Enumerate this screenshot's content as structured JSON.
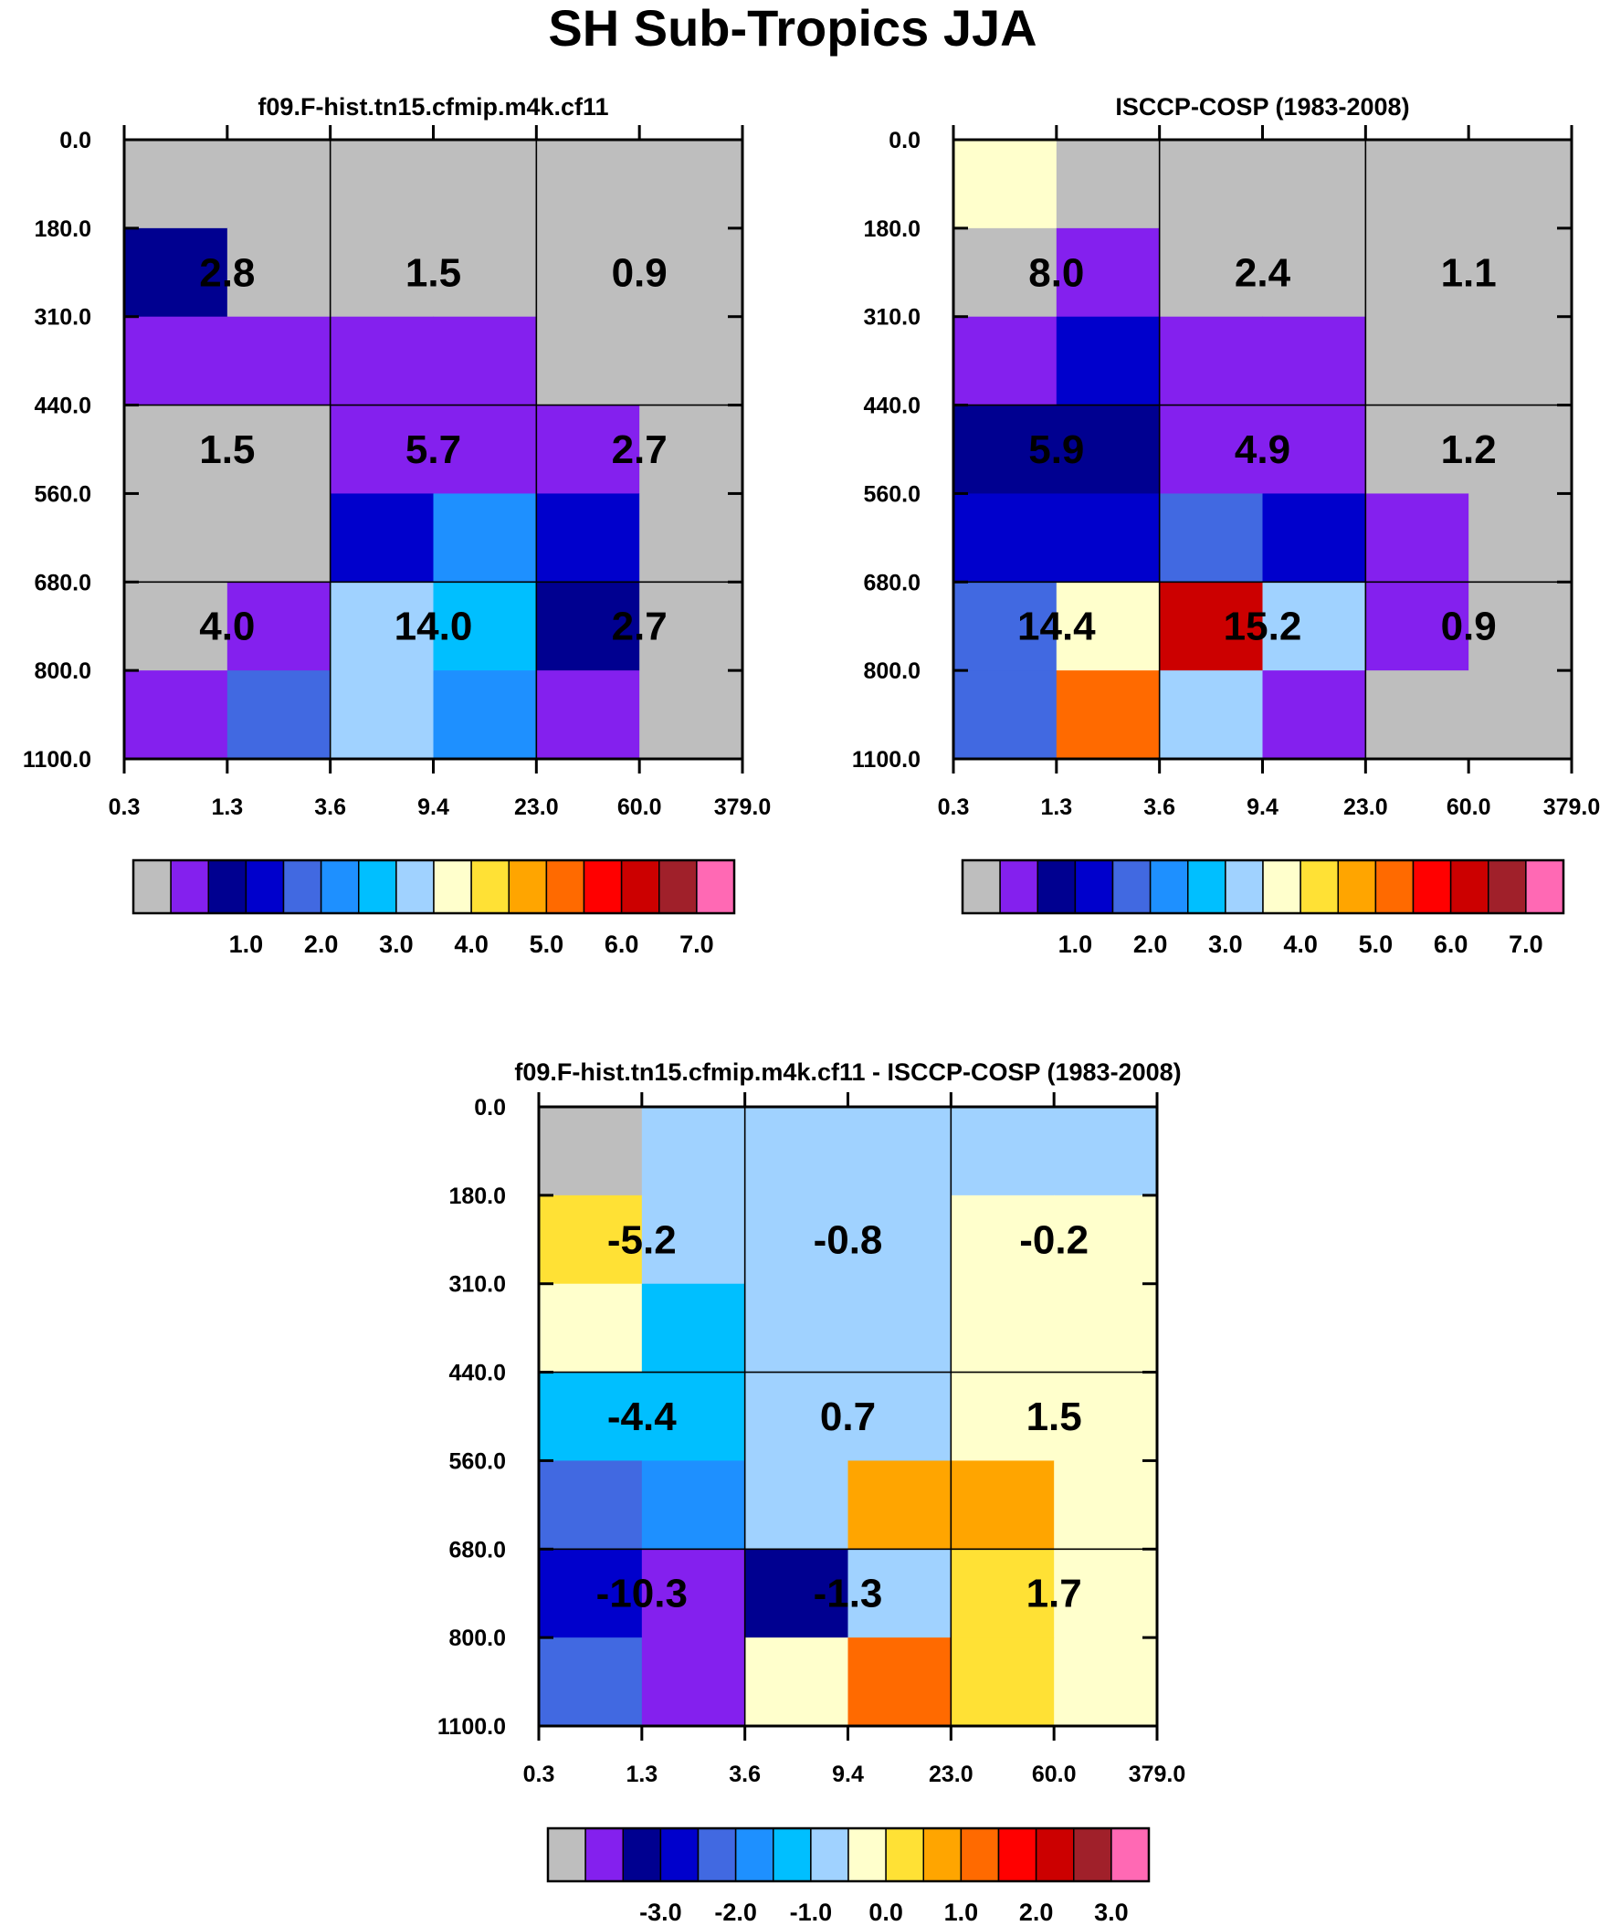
{
  "page": {
    "title": "SH Sub-Tropics JJA"
  },
  "chart_data": [
    {
      "type": "heatmap",
      "title": "f09.F-hist.tn15.cfmip.m4k.cf11",
      "xlabel": "",
      "ylabel": "",
      "x_ticks": [
        "0.3",
        "1.3",
        "3.6",
        "9.4",
        "23.0",
        "60.0",
        "379.0"
      ],
      "y_ticks": [
        "0.0",
        "180.0",
        "310.0",
        "440.0",
        "560.0",
        "680.0",
        "800.0",
        "1100.0"
      ],
      "cell_color_index": [
        [
          0,
          0,
          0,
          0,
          0,
          0
        ],
        [
          2,
          0,
          0,
          0,
          0,
          0
        ],
        [
          1,
          1,
          1,
          1,
          0,
          0
        ],
        [
          0,
          0,
          1,
          1,
          1,
          0
        ],
        [
          0,
          0,
          3,
          5,
          3,
          0
        ],
        [
          0,
          1,
          7,
          6,
          2,
          0
        ],
        [
          1,
          4,
          7,
          5,
          1,
          0
        ]
      ],
      "group_values": [
        [
          "2.8",
          "1.5",
          "0.9"
        ],
        [
          "1.5",
          "5.7",
          "2.7"
        ],
        [
          "4.0",
          "14.0",
          "2.7"
        ]
      ],
      "colorbar": {
        "labels": [
          "1.0",
          "2.0",
          "3.0",
          "4.0",
          "5.0",
          "6.0",
          "7.0"
        ]
      }
    },
    {
      "type": "heatmap",
      "title": "ISCCP-COSP (1983-2008)",
      "xlabel": "",
      "ylabel": "",
      "x_ticks": [
        "0.3",
        "1.3",
        "3.6",
        "9.4",
        "23.0",
        "60.0",
        "379.0"
      ],
      "y_ticks": [
        "0.0",
        "180.0",
        "310.0",
        "440.0",
        "560.0",
        "680.0",
        "800.0",
        "1100.0"
      ],
      "cell_color_index": [
        [
          8,
          0,
          0,
          0,
          0,
          0
        ],
        [
          0,
          1,
          0,
          0,
          0,
          0
        ],
        [
          1,
          3,
          1,
          1,
          0,
          0
        ],
        [
          2,
          2,
          1,
          1,
          0,
          0
        ],
        [
          3,
          3,
          4,
          3,
          1,
          0
        ],
        [
          4,
          8,
          13,
          7,
          1,
          0
        ],
        [
          4,
          11,
          7,
          1,
          0,
          0
        ]
      ],
      "group_values": [
        [
          "8.0",
          "2.4",
          "1.1"
        ],
        [
          "5.9",
          "4.9",
          "1.2"
        ],
        [
          "14.4",
          "15.2",
          "0.9"
        ]
      ],
      "colorbar": {
        "labels": [
          "1.0",
          "2.0",
          "3.0",
          "4.0",
          "5.0",
          "6.0",
          "7.0"
        ]
      }
    },
    {
      "type": "heatmap",
      "title": "f09.F-hist.tn15.cfmip.m4k.cf11 - ISCCP-COSP (1983-2008)",
      "xlabel": "",
      "ylabel": "",
      "x_ticks": [
        "0.3",
        "1.3",
        "3.6",
        "9.4",
        "23.0",
        "60.0",
        "379.0"
      ],
      "y_ticks": [
        "0.0",
        "180.0",
        "310.0",
        "440.0",
        "560.0",
        "680.0",
        "800.0",
        "1100.0"
      ],
      "cell_color_index": [
        [
          0,
          7,
          7,
          7,
          7,
          7
        ],
        [
          9,
          7,
          7,
          7,
          8,
          8
        ],
        [
          8,
          6,
          7,
          7,
          8,
          8
        ],
        [
          6,
          6,
          7,
          7,
          8,
          8
        ],
        [
          4,
          5,
          7,
          10,
          10,
          8
        ],
        [
          3,
          1,
          2,
          7,
          9,
          8
        ],
        [
          4,
          1,
          8,
          11,
          9,
          8
        ]
      ],
      "group_values": [
        [
          "-5.2",
          "-0.8",
          "-0.2"
        ],
        [
          "-4.4",
          "0.7",
          "1.5"
        ],
        [
          "-10.3",
          "-1.3",
          "1.7"
        ]
      ],
      "colorbar": {
        "labels": [
          "-3.0",
          "-2.0",
          "-1.0",
          "0.0",
          "1.0",
          "2.0",
          "3.0"
        ]
      }
    }
  ],
  "palette": [
    "#bebebe",
    "#8420ee",
    "#000090",
    "#0000cc",
    "#4169e1",
    "#1e90ff",
    "#00bfff",
    "#a0d2ff",
    "#ffffcc",
    "#ffe135",
    "#ffa500",
    "#ff6a00",
    "#ff0000",
    "#cc0000",
    "#a0202a",
    "#ff69b4"
  ]
}
